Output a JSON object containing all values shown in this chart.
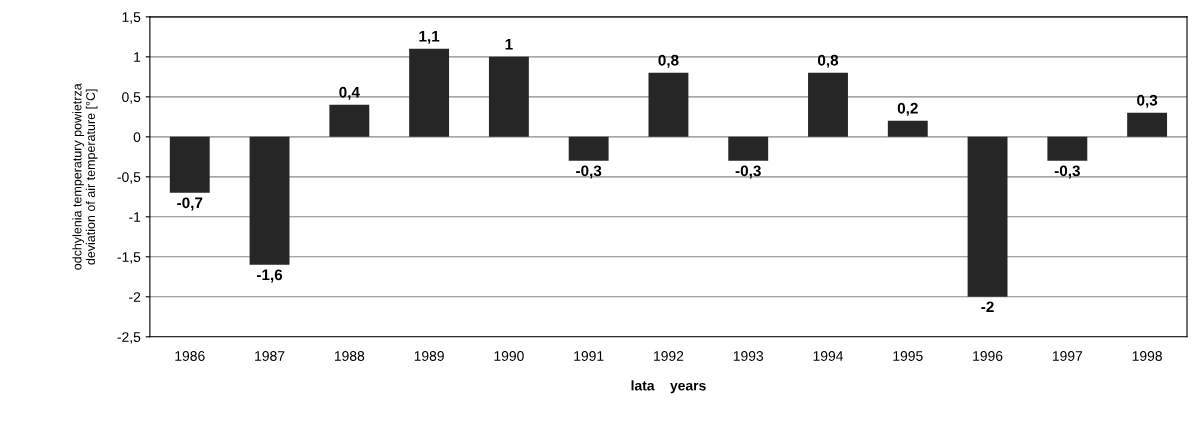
{
  "chart_data": {
    "type": "bar",
    "xlabel": "lata    years",
    "ylabel": "odchylenia temperatury powietrza\ndeviation of air temperature [°C]",
    "categories": [
      "1986",
      "1987",
      "1988",
      "1989",
      "1990",
      "1991",
      "1992",
      "1993",
      "1994",
      "1995",
      "1996",
      "1997",
      "1998"
    ],
    "values": [
      -0.7,
      -1.6,
      0.4,
      1.1,
      1,
      -0.3,
      0.8,
      -0.3,
      0.8,
      0.2,
      -2,
      -0.3,
      0.3
    ],
    "value_labels": [
      "-0,7",
      "-1,6",
      "0,4",
      "1,1",
      "1",
      "-0,3",
      "0,8",
      "-0,3",
      "0,8",
      "0,2",
      "-2",
      "-0,3",
      "0,3"
    ],
    "color": "#262626",
    "ylim": [
      -2.5,
      1.5
    ],
    "yticks": [
      {
        "value": 1.5,
        "label": "1,5"
      },
      1,
      {
        "value": 0.5,
        "label": "0,5"
      },
      0,
      {
        "value": -0.5,
        "label": "-0,5"
      },
      -1,
      {
        "value": -1.5,
        "label": "-1,5"
      },
      -2,
      {
        "value": -2.5,
        "label": "-2,5"
      }
    ],
    "grid": "y"
  }
}
